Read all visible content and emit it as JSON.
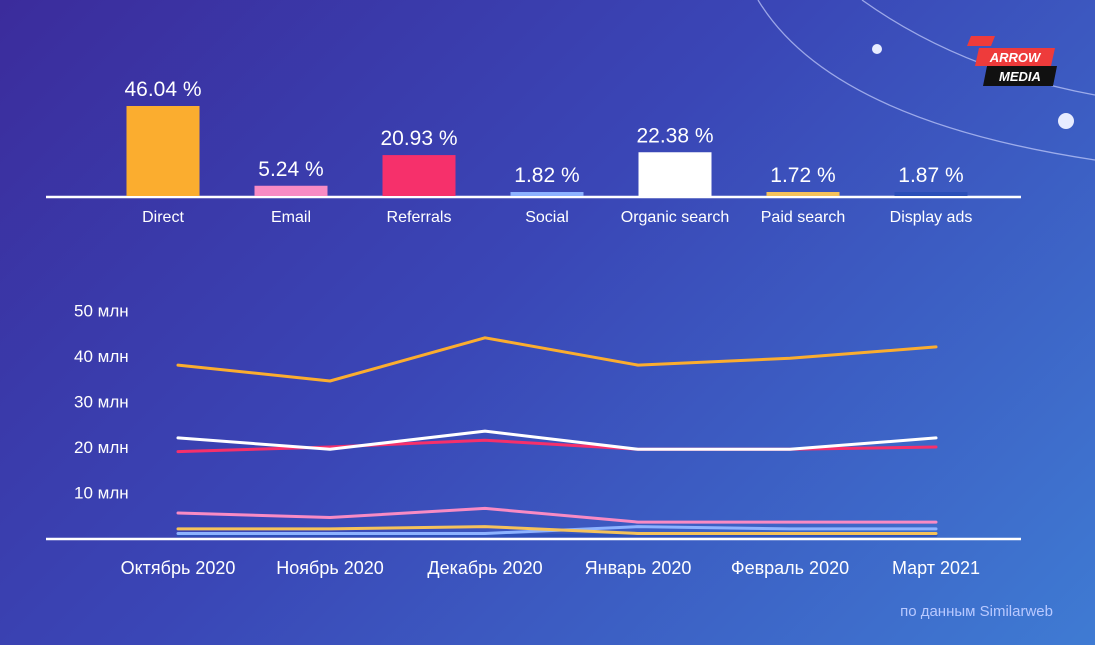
{
  "brand": {
    "line1": "ARROW",
    "line2": "MEDIA",
    "accent": "#ee3b3b"
  },
  "source_note": "по данным Similarweb",
  "colors": {
    "direct": "#fbad2f",
    "email": "#f88bc4",
    "referrals": "#f6306b",
    "social": "#8db2ff",
    "organic": "#ffffff",
    "paid": "#f5c25a",
    "display": "#2b4fb8"
  },
  "chart_data": [
    {
      "type": "bar",
      "title": "",
      "categories": [
        "Direct",
        "Email",
        "Referrals",
        "Social",
        "Organic search",
        "Paid search",
        "Display ads"
      ],
      "values": [
        46.04,
        5.24,
        20.93,
        1.82,
        22.38,
        1.72,
        1.87
      ],
      "value_labels": [
        "46.04 %",
        "5.24 %",
        "20.93 %",
        "1.82 %",
        "22.38 %",
        "1.72 %",
        "1.87 %"
      ],
      "series_colors": [
        "#fbad2f",
        "#f88bc4",
        "#f6306b",
        "#8db2ff",
        "#ffffff",
        "#f5c25a",
        "#2b4fb8"
      ],
      "ylim": [
        0,
        46.04
      ],
      "grid": false
    },
    {
      "type": "line",
      "title": "",
      "categories": [
        "Октябрь 2020",
        "Ноябрь 2020",
        "Декабрь 2020",
        "Январь 2020",
        "Февраль 2020",
        "Март 2021"
      ],
      "y_ticks": [
        10,
        20,
        30,
        40,
        50
      ],
      "y_tick_labels": [
        "10 млн",
        "20 млн",
        "30 млн",
        "40 млн",
        "50 млн"
      ],
      "ylim": [
        0,
        50
      ],
      "grid": false,
      "series": [
        {
          "key": "direct",
          "color": "#fbad2f",
          "values": [
            38,
            34.5,
            44,
            38,
            39.5,
            42
          ]
        },
        {
          "key": "organic",
          "color": "#ffffff",
          "values": [
            22,
            19.5,
            23.5,
            19.5,
            19.5,
            22
          ]
        },
        {
          "key": "referrals",
          "color": "#f6306b",
          "values": [
            19,
            20,
            21.5,
            19.5,
            19.5,
            20
          ]
        },
        {
          "key": "email",
          "color": "#f88bc4",
          "values": [
            5.5,
            4.5,
            6.5,
            3.5,
            3.5,
            3.5
          ]
        },
        {
          "key": "paid",
          "color": "#f5c25a",
          "values": [
            2,
            2,
            2.5,
            1,
            1,
            1
          ]
        },
        {
          "key": "social",
          "color": "#8db2ff",
          "values": [
            1,
            1,
            1,
            2.5,
            2,
            2
          ]
        },
        {
          "key": "display",
          "color": "#2b4fb8",
          "values": [
            0.6,
            0.6,
            0.6,
            0.6,
            0.6,
            0.6
          ]
        }
      ]
    }
  ]
}
